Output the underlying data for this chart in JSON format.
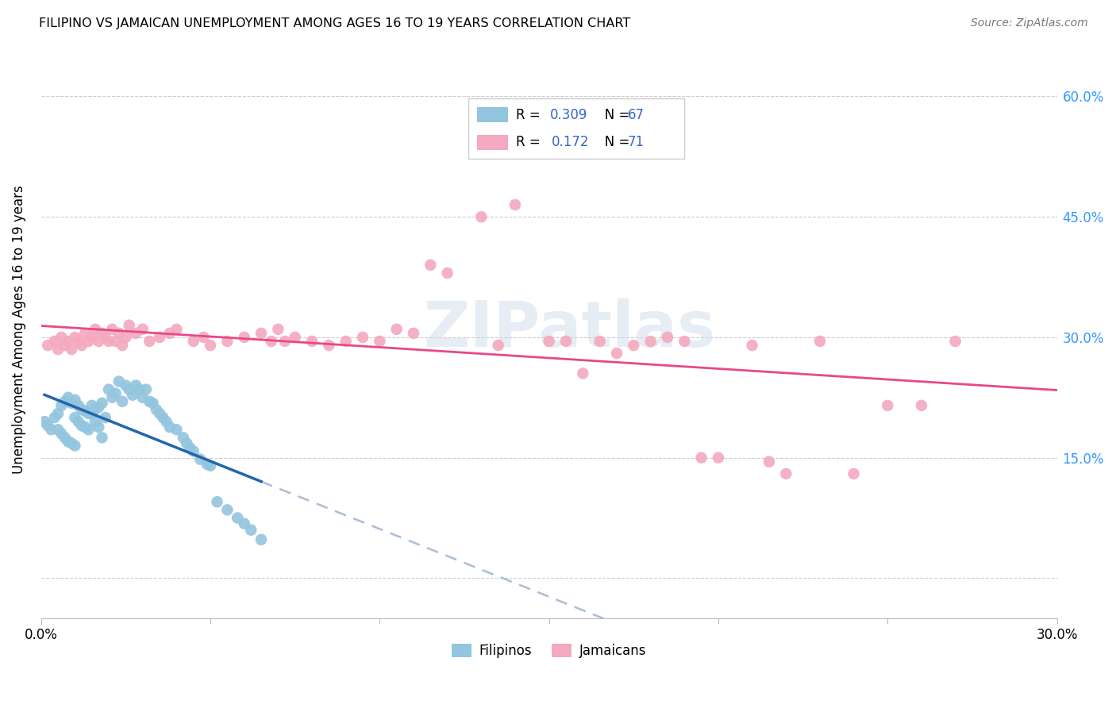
{
  "title": "FILIPINO VS JAMAICAN UNEMPLOYMENT AMONG AGES 16 TO 19 YEARS CORRELATION CHART",
  "source": "Source: ZipAtlas.com",
  "ylabel": "Unemployment Among Ages 16 to 19 years",
  "xlim": [
    0.0,
    0.3
  ],
  "ylim": [
    -0.05,
    0.67
  ],
  "yticks": [
    0.0,
    0.15,
    0.3,
    0.45,
    0.6
  ],
  "right_ytick_labels": [
    "15.0%",
    "30.0%",
    "45.0%",
    "60.0%"
  ],
  "right_yticks": [
    0.15,
    0.3,
    0.45,
    0.6
  ],
  "xtick_positions": [
    0.0,
    0.05,
    0.1,
    0.15,
    0.2,
    0.25,
    0.3
  ],
  "filipino_color": "#92C5DE",
  "jamaican_color": "#F4A9BE",
  "filipino_line_color": "#2166AC",
  "jamaican_line_color": "#E8488A",
  "dashed_line_color": "#AABDD4",
  "watermark_text": "ZIPatlas",
  "filipinos_x": [
    0.001,
    0.002,
    0.003,
    0.004,
    0.005,
    0.005,
    0.006,
    0.006,
    0.007,
    0.007,
    0.008,
    0.008,
    0.009,
    0.009,
    0.01,
    0.01,
    0.01,
    0.011,
    0.011,
    0.012,
    0.012,
    0.013,
    0.013,
    0.014,
    0.014,
    0.015,
    0.015,
    0.016,
    0.016,
    0.017,
    0.017,
    0.018,
    0.018,
    0.019,
    0.02,
    0.021,
    0.022,
    0.023,
    0.024,
    0.025,
    0.026,
    0.027,
    0.028,
    0.029,
    0.03,
    0.031,
    0.032,
    0.033,
    0.034,
    0.035,
    0.036,
    0.037,
    0.038,
    0.04,
    0.042,
    0.043,
    0.044,
    0.045,
    0.047,
    0.049,
    0.05,
    0.052,
    0.055,
    0.058,
    0.06,
    0.062,
    0.065
  ],
  "filipinos_y": [
    0.195,
    0.19,
    0.185,
    0.2,
    0.205,
    0.185,
    0.215,
    0.18,
    0.22,
    0.175,
    0.225,
    0.17,
    0.218,
    0.168,
    0.222,
    0.2,
    0.165,
    0.215,
    0.195,
    0.21,
    0.19,
    0.208,
    0.188,
    0.205,
    0.185,
    0.215,
    0.205,
    0.21,
    0.195,
    0.213,
    0.188,
    0.218,
    0.175,
    0.2,
    0.235,
    0.225,
    0.23,
    0.245,
    0.22,
    0.24,
    0.235,
    0.228,
    0.24,
    0.235,
    0.225,
    0.235,
    0.22,
    0.218,
    0.21,
    0.205,
    0.2,
    0.195,
    0.188,
    0.185,
    0.175,
    0.168,
    0.162,
    0.158,
    0.148,
    0.142,
    0.14,
    0.095,
    0.085,
    0.075,
    0.068,
    0.06,
    0.048
  ],
  "jamaicans_x": [
    0.002,
    0.004,
    0.005,
    0.006,
    0.007,
    0.008,
    0.009,
    0.01,
    0.011,
    0.012,
    0.013,
    0.014,
    0.015,
    0.016,
    0.017,
    0.018,
    0.019,
    0.02,
    0.021,
    0.022,
    0.023,
    0.024,
    0.025,
    0.026,
    0.028,
    0.03,
    0.032,
    0.035,
    0.038,
    0.04,
    0.045,
    0.048,
    0.05,
    0.055,
    0.06,
    0.065,
    0.068,
    0.07,
    0.072,
    0.075,
    0.08,
    0.085,
    0.09,
    0.095,
    0.1,
    0.105,
    0.11,
    0.115,
    0.12,
    0.13,
    0.135,
    0.14,
    0.15,
    0.155,
    0.16,
    0.165,
    0.17,
    0.175,
    0.18,
    0.185,
    0.19,
    0.195,
    0.2,
    0.21,
    0.215,
    0.22,
    0.23,
    0.24,
    0.25,
    0.26,
    0.27
  ],
  "jamaicans_y": [
    0.29,
    0.295,
    0.285,
    0.3,
    0.29,
    0.295,
    0.285,
    0.3,
    0.295,
    0.29,
    0.305,
    0.295,
    0.3,
    0.31,
    0.295,
    0.305,
    0.3,
    0.295,
    0.31,
    0.295,
    0.305,
    0.29,
    0.3,
    0.315,
    0.305,
    0.31,
    0.295,
    0.3,
    0.305,
    0.31,
    0.295,
    0.3,
    0.29,
    0.295,
    0.3,
    0.305,
    0.295,
    0.31,
    0.295,
    0.3,
    0.295,
    0.29,
    0.295,
    0.3,
    0.295,
    0.31,
    0.305,
    0.39,
    0.38,
    0.45,
    0.29,
    0.465,
    0.295,
    0.295,
    0.255,
    0.295,
    0.28,
    0.29,
    0.295,
    0.3,
    0.295,
    0.15,
    0.15,
    0.29,
    0.145,
    0.13,
    0.295,
    0.13,
    0.215,
    0.215,
    0.295
  ]
}
